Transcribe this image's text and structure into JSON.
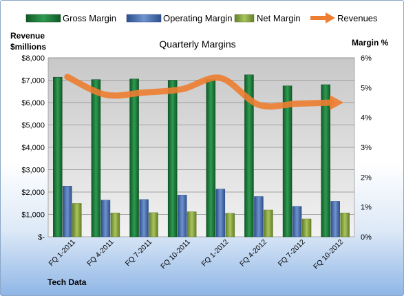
{
  "chart_data": {
    "type": "bar",
    "title": "Quarterly Margins",
    "source": "Tech Data",
    "categories": [
      "FQ 1-2011",
      "FQ 4-2011",
      "FQ 7-2011",
      "FQ 10-2011",
      "FQ 1-2012",
      "FQ 4-2012",
      "FQ 7-2012",
      "FQ 10-2012"
    ],
    "series": [
      {
        "name": "Gross Margin",
        "axis": "right",
        "values": [
          5.35,
          5.27,
          5.29,
          5.25,
          5.27,
          5.43,
          5.06,
          5.1
        ]
      },
      {
        "name": "Operating Margin",
        "axis": "right",
        "values": [
          1.7,
          1.23,
          1.25,
          1.4,
          1.6,
          1.35,
          1.02,
          1.19
        ]
      },
      {
        "name": "Net Margin",
        "axis": "right",
        "values": [
          1.12,
          0.8,
          0.81,
          0.84,
          0.79,
          0.9,
          0.6,
          0.8
        ]
      },
      {
        "name": "Revenues",
        "type": "line",
        "axis": "left",
        "values": [
          7150,
          6350,
          6450,
          6600,
          7100,
          5900,
          5950,
          6000
        ]
      }
    ],
    "left_axis": {
      "label_line1": "Revenue",
      "label_line2": "$millions",
      "range": [
        0,
        8000
      ],
      "ticks": [
        "$-",
        "$1,000",
        "$2,000",
        "$3,000",
        "$4,000",
        "$5,000",
        "$6,000",
        "$7,000",
        "$8,000"
      ]
    },
    "right_axis": {
      "label": "Margin %",
      "range": [
        0,
        6
      ],
      "ticks": [
        "0%",
        "1%",
        "2%",
        "3%",
        "4%",
        "5%",
        "6%"
      ]
    },
    "legend_position": "top",
    "grid": true,
    "colors": {
      "gross_margin": "#1e7a3c",
      "operating_margin": "#4a6fae",
      "net_margin": "#8aa843",
      "revenues": "#ed7d31",
      "plot_area": "#d9d9d9"
    }
  }
}
